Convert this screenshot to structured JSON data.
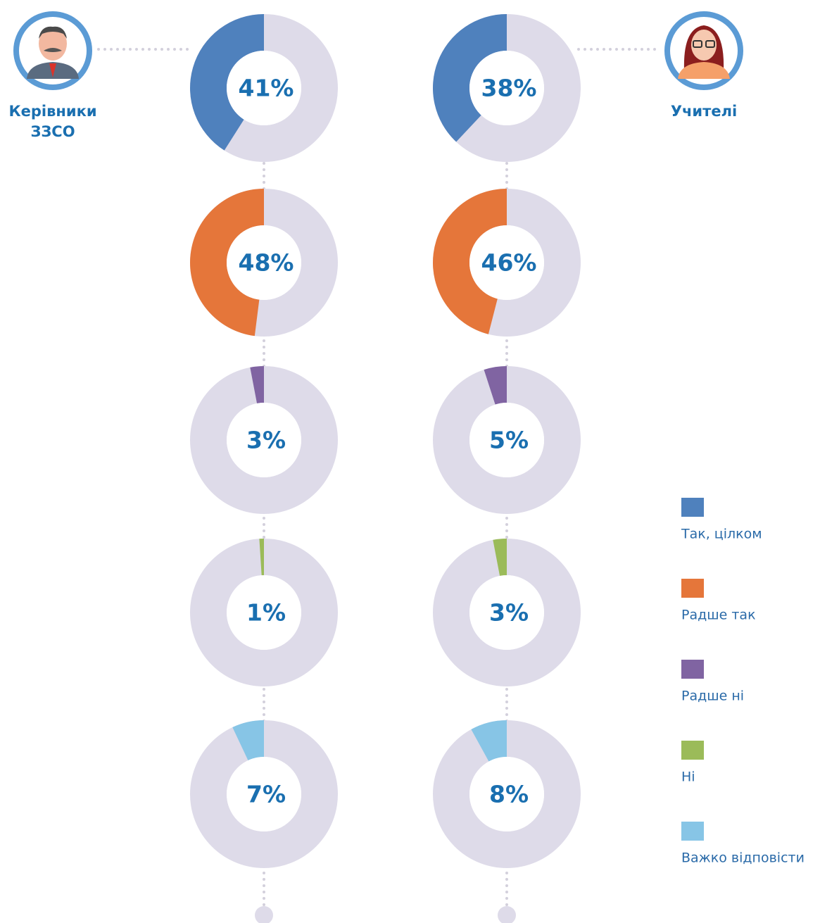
{
  "chart_data": {
    "type": "donut",
    "categories": [
      "Так, цілком",
      "Радше так",
      "Радше ні",
      "Ні",
      "Важко відповісти"
    ],
    "colors": [
      "#4f81bd",
      "#e5763a",
      "#8064a2",
      "#9bbb59",
      "#87c5e6"
    ],
    "series": [
      {
        "name": "Керівники ЗЗСО",
        "values": [
          41,
          48,
          3,
          1,
          7
        ],
        "value_labels": [
          "41%",
          "48%",
          "3%",
          "1%",
          "7%"
        ]
      },
      {
        "name": "Учителі",
        "values": [
          38,
          46,
          5,
          3,
          8
        ],
        "value_labels": [
          "38%",
          "46%",
          "5%",
          "3%",
          "8%"
        ]
      }
    ],
    "legend": true
  }
}
